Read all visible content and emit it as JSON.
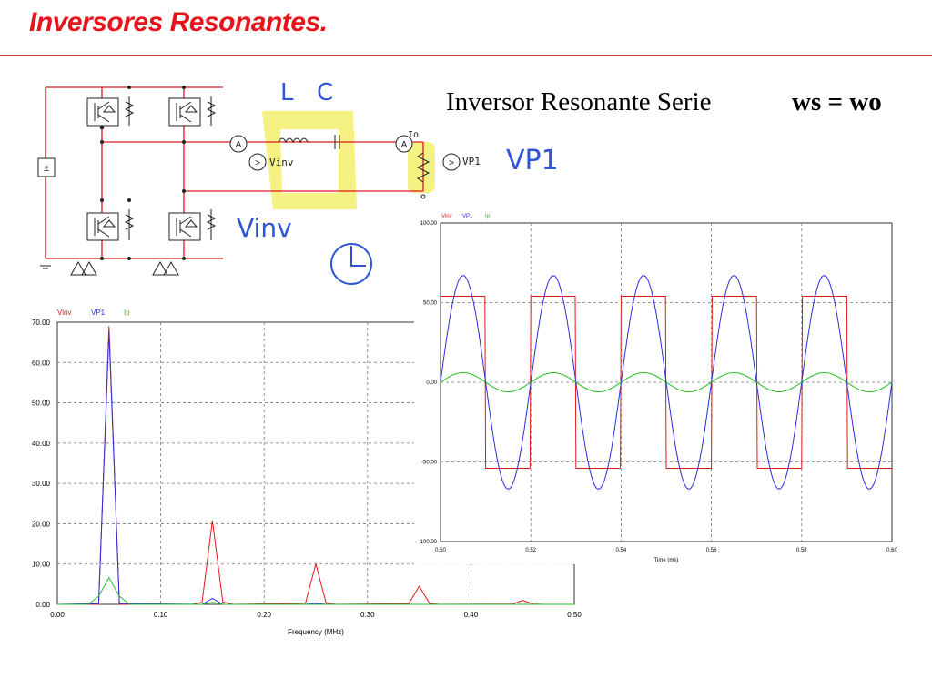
{
  "slide": {
    "title": "Inversores Resonantes.",
    "subtitle": "Inversor Resonante Serie",
    "equation": "ws = wo"
  },
  "schematic": {
    "label_vinv": "Vinv",
    "label_vp1": "VP1",
    "label_io": "Io",
    "annot_l": "L",
    "annot_c": "C",
    "annot_vinv": "Vinv",
    "annot_vp1": "VP1",
    "colors": {
      "wire": "#e0191f",
      "highlight": "#f4f074",
      "annotation": "#2f55d4"
    }
  },
  "chart_data": [
    {
      "type": "line",
      "title": "",
      "xlabel": "Frequency (MHz)",
      "ylabel": "",
      "xlim": [
        0.0,
        0.5
      ],
      "ylim": [
        0.0,
        70.0
      ],
      "xticks": [
        "0.00",
        "0.10",
        "0.20",
        "0.30",
        "0.40",
        "0.50"
      ],
      "yticks": [
        "0.00",
        "10.00",
        "20.00",
        "30.00",
        "40.00",
        "50.00",
        "60.00",
        "70.00"
      ],
      "grid": true,
      "legend": "top-left",
      "series": [
        {
          "name": "Vinv",
          "color": "#e0191f",
          "x": [
            0.0,
            0.04,
            0.05,
            0.06,
            0.13,
            0.14,
            0.15,
            0.16,
            0.17,
            0.24,
            0.25,
            0.26,
            0.27,
            0.34,
            0.35,
            0.36,
            0.37,
            0.44,
            0.45,
            0.46,
            0.47,
            0.5
          ],
          "y": [
            0.0,
            0.0,
            69.0,
            0.0,
            0.0,
            0.5,
            20.8,
            0.6,
            0.0,
            0.3,
            10.0,
            0.3,
            0.0,
            0.2,
            4.5,
            0.2,
            0.0,
            0.1,
            1.0,
            0.1,
            0.0,
            0.0
          ]
        },
        {
          "name": "VP1",
          "color": "#2a2ee0",
          "x": [
            0.0,
            0.04,
            0.05,
            0.06,
            0.14,
            0.15,
            0.16,
            0.24,
            0.25,
            0.26,
            0.5
          ],
          "y": [
            0.0,
            0.2,
            67.5,
            0.2,
            0.0,
            1.5,
            0.0,
            0.0,
            0.3,
            0.0,
            0.0
          ]
        },
        {
          "name": "Ip",
          "color": "#1fbf1f",
          "x": [
            0.0,
            0.03,
            0.04,
            0.05,
            0.06,
            0.07,
            0.14,
            0.15,
            0.16,
            0.5
          ],
          "y": [
            0.0,
            0.0,
            2.0,
            6.6,
            2.0,
            0.0,
            0.0,
            0.5,
            0.0,
            0.0
          ]
        }
      ]
    },
    {
      "type": "line",
      "title": "",
      "xlabel": "Time (ms)",
      "ylabel": "",
      "xlim": [
        0.5,
        0.6
      ],
      "ylim": [
        -100.0,
        100.0
      ],
      "xticks": [
        "0.50",
        "0.52",
        "0.54",
        "0.56",
        "0.58",
        "0.60"
      ],
      "yticks": [
        "-100.00",
        "-50.00",
        "0.00",
        "50.00",
        "100.00"
      ],
      "grid": true,
      "legend": "top-left",
      "series": [
        {
          "name": "Vinv",
          "color": "#e0191f",
          "waveform": "square",
          "amplitude": 54,
          "period_ms": 0.02,
          "phase_ms": 0.0
        },
        {
          "name": "VP1",
          "color": "#2a2ee0",
          "waveform": "sine",
          "amplitude": 67,
          "period_ms": 0.02,
          "phase_ms": 0.0
        },
        {
          "name": "Ip",
          "color": "#1fbf1f",
          "waveform": "sine",
          "amplitude": 6,
          "period_ms": 0.02,
          "phase_ms": 0.0
        }
      ]
    }
  ]
}
